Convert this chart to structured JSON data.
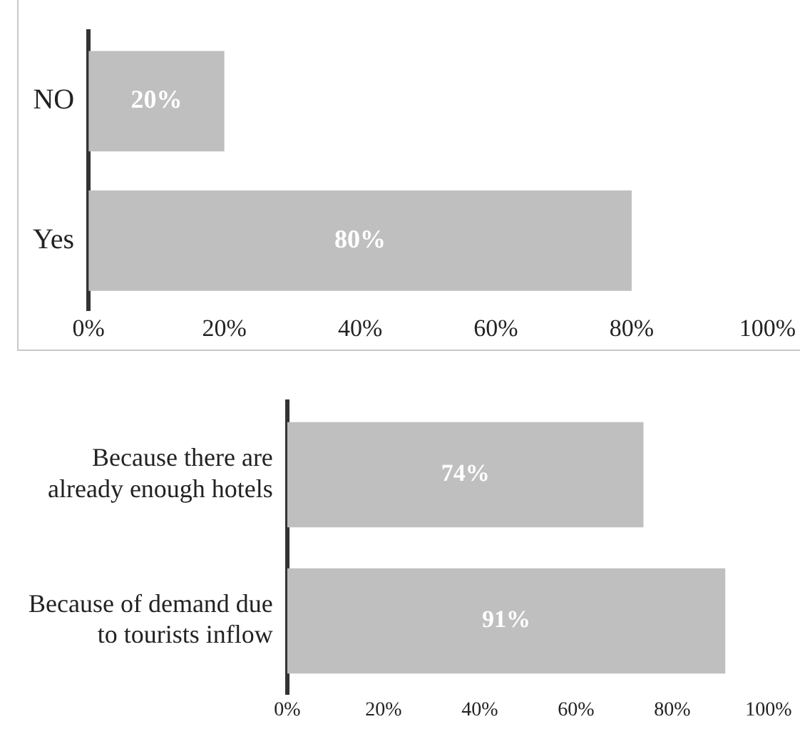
{
  "chart_data": [
    {
      "type": "bar",
      "orientation": "horizontal",
      "categories": [
        "NO",
        "Yes"
      ],
      "values": [
        20,
        80
      ],
      "color": "#bfbfbf",
      "value_labels": [
        "20%",
        "80%"
      ],
      "xlim": [
        0,
        100
      ],
      "xticks": [
        {
          "value": 0,
          "label": "0%"
        },
        {
          "value": 20,
          "label": "20%"
        },
        {
          "value": 40,
          "label": "40%"
        },
        {
          "value": 60,
          "label": "60%"
        },
        {
          "value": 80,
          "label": "80%"
        },
        {
          "value": 100,
          "label": "100%"
        }
      ],
      "grid": false,
      "legend": false
    },
    {
      "type": "bar",
      "orientation": "horizontal",
      "categories": [
        "Because there are already enough hotels",
        "Because of demand due to tourists inflow"
      ],
      "values": [
        74,
        91
      ],
      "color": "#bfbfbf",
      "value_labels": [
        "74%",
        "91%"
      ],
      "xlim": [
        0,
        100
      ],
      "xticks": [
        {
          "value": 0,
          "label": "0%"
        },
        {
          "value": 20,
          "label": "20%"
        },
        {
          "value": 40,
          "label": "40%"
        },
        {
          "value": 60,
          "label": "60%"
        },
        {
          "value": 80,
          "label": "80%"
        },
        {
          "value": 100,
          "label": "100%"
        }
      ],
      "grid": false,
      "legend": false
    }
  ]
}
